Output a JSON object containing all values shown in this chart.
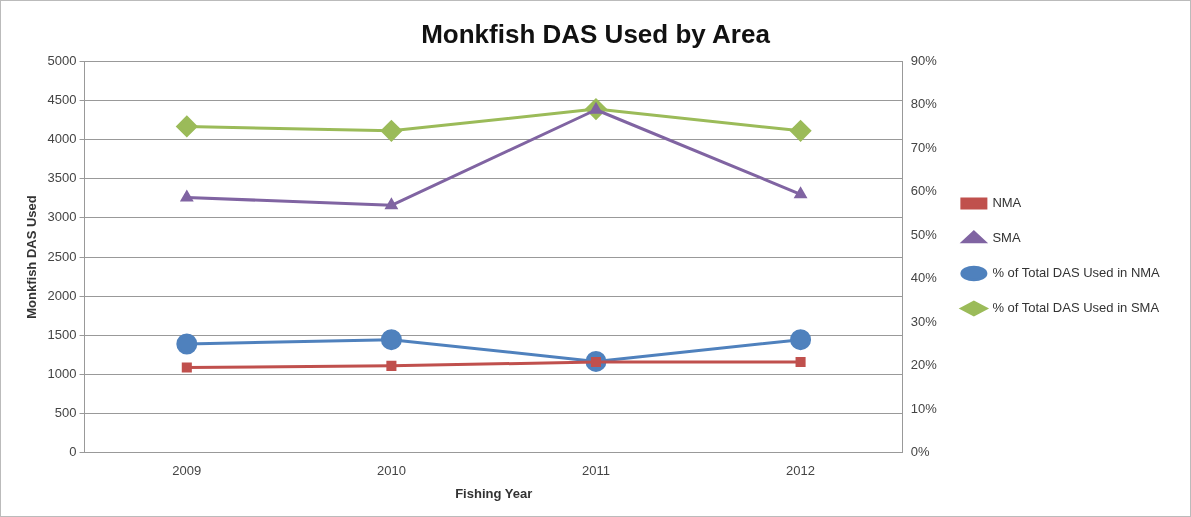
{
  "chart_data": {
    "type": "line",
    "title": "Monkfish DAS Used by Area",
    "xlabel": "Fishing Year",
    "ylabel": "Monkfish DAS Used",
    "categories": [
      "2009",
      "2010",
      "2011",
      "2012"
    ],
    "series": [
      {
        "name": "NMA",
        "color": "#c0504d",
        "marker": "square",
        "values": [
          1090,
          1110,
          1160,
          1160
        ]
      },
      {
        "name": "SMA",
        "color": "#8064a2",
        "marker": "triangle",
        "values": [
          3260,
          3160,
          4380,
          3300
        ]
      },
      {
        "name": "% of Total DAS Used in NMA",
        "color": "#4f81bd",
        "marker": "circle",
        "axis": "y2",
        "values": [
          25,
          26,
          21,
          26
        ]
      },
      {
        "name": "% of Total DAS Used in SMA",
        "color": "#9bbb59",
        "marker": "diamond",
        "axis": "y2",
        "values": [
          75,
          74,
          79,
          74
        ]
      }
    ],
    "ylim": [
      0,
      5000
    ],
    "yticks": [
      0,
      500,
      1000,
      1500,
      2000,
      2500,
      3000,
      3500,
      4000,
      4500,
      5000
    ],
    "y2lim": [
      0,
      90
    ],
    "y2ticks": [
      {
        "value": 0,
        "label": "0%"
      },
      {
        "value": 10,
        "label": "10%"
      },
      {
        "value": 20,
        "label": "20%"
      },
      {
        "value": 30,
        "label": "30%"
      },
      {
        "value": 40,
        "label": "40%"
      },
      {
        "value": 50,
        "label": "50%"
      },
      {
        "value": 60,
        "label": "60%"
      },
      {
        "value": 70,
        "label": "70%"
      },
      {
        "value": 80,
        "label": "80%"
      },
      {
        "value": 90,
        "label": "90%"
      }
    ],
    "grid": "y",
    "legend": "right",
    "line_style": "solid"
  }
}
